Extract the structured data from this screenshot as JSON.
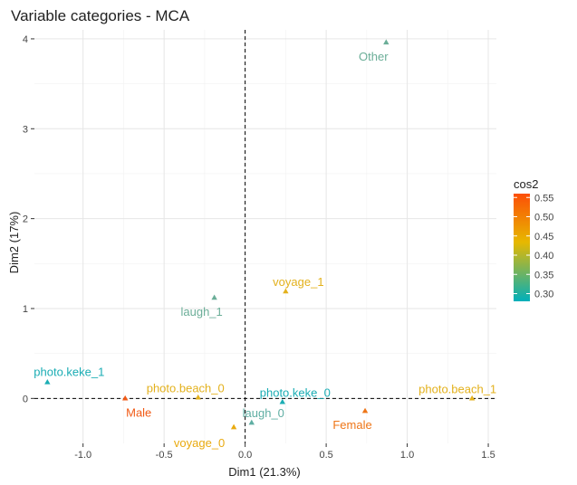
{
  "chart_data": {
    "type": "scatter",
    "title": "Variable categories - MCA",
    "xlabel": "Dim1 (21.3%)",
    "ylabel": "Dim2 (17%)",
    "xlim": [
      -1.3,
      1.55
    ],
    "ylim": [
      -0.5,
      4.1
    ],
    "x_ticks": [
      -1.0,
      -0.5,
      0.0,
      0.5,
      1.0,
      1.5
    ],
    "x_tick_labels": [
      "-1.0",
      "-0.5",
      "0.0",
      "0.5",
      "1.0",
      "1.5"
    ],
    "y_ticks": [
      0,
      1,
      2,
      3,
      4
    ],
    "y_tick_labels": [
      "0",
      "1",
      "2",
      "3",
      "4"
    ],
    "grid": true,
    "reference_lines": {
      "x": 0,
      "y": 0,
      "style": "dashed"
    },
    "color_scale": {
      "name": "cos2",
      "min": 0.28,
      "max": 0.56,
      "stops": [
        "#00AFBB",
        "#E7B800",
        "#FC4E07"
      ],
      "ticks": [
        0.3,
        0.35,
        0.4,
        0.45,
        0.5,
        0.55
      ],
      "tick_labels": [
        "0.30",
        "0.35",
        "0.40",
        "0.45",
        "0.50",
        "0.55"
      ]
    },
    "legend": {
      "position": "right"
    },
    "points": [
      {
        "label": "Other",
        "x": 0.87,
        "y": 3.96,
        "cos2": 0.33,
        "color": "#6BAE98"
      },
      {
        "label": "voyage_1",
        "x": 0.25,
        "y": 1.19,
        "cos2": 0.45,
        "color": "#E3B11D"
      },
      {
        "label": "laugh_1",
        "x": -0.19,
        "y": 1.12,
        "cos2": 0.33,
        "color": "#6BAE98"
      },
      {
        "label": "photo.keke_1",
        "x": -1.22,
        "y": 0.18,
        "cos2": 0.3,
        "color": "#1BADB4"
      },
      {
        "label": "Male",
        "x": -0.74,
        "y": 0.0,
        "cos2": 0.55,
        "color": "#F15A16"
      },
      {
        "label": "photo.beach_0",
        "x": -0.29,
        "y": 0.01,
        "cos2": 0.45,
        "color": "#E3B11D"
      },
      {
        "label": "photo.keke_0",
        "x": 0.23,
        "y": -0.04,
        "cos2": 0.3,
        "color": "#1BADB4"
      },
      {
        "label": "laugh_0",
        "x": 0.04,
        "y": -0.27,
        "cos2": 0.32,
        "color": "#5FAEA3"
      },
      {
        "label": "voyage_0",
        "x": -0.07,
        "y": -0.32,
        "cos2": 0.46,
        "color": "#E9AA10"
      },
      {
        "label": "Female",
        "x": 0.74,
        "y": -0.14,
        "cos2": 0.53,
        "color": "#EE7517"
      },
      {
        "label": "photo.beach_1",
        "x": 1.4,
        "y": 0.0,
        "cos2": 0.45,
        "color": "#E3B11D"
      }
    ]
  }
}
